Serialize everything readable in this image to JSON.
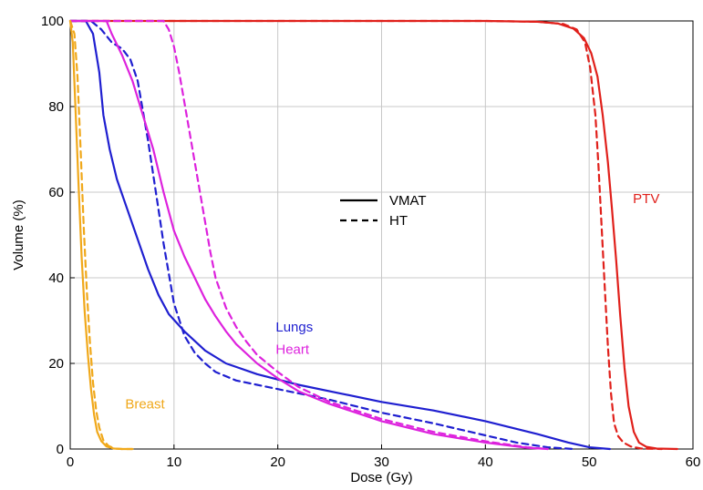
{
  "chart_data": {
    "type": "line",
    "xlabel": "Dose (Gy)",
    "ylabel": "Volume (%)",
    "xlim": [
      0,
      60
    ],
    "ylim": [
      0,
      100
    ],
    "xticks": [
      0,
      10,
      20,
      30,
      40,
      50,
      60
    ],
    "yticks": [
      0,
      20,
      40,
      60,
      80,
      100
    ],
    "grid": true,
    "legend": {
      "placement": "center",
      "entries": [
        {
          "label": "VMAT",
          "style": "solid"
        },
        {
          "label": "HT",
          "style": "dashed"
        }
      ]
    },
    "annotations": [
      {
        "text": "PTV",
        "x": 55.5,
        "y": 57.5,
        "color": "#e0201b"
      },
      {
        "text": "Lungs",
        "x": 19.8,
        "y": 27.5,
        "color": "#1f1fd0"
      },
      {
        "text": "Heart",
        "x": 19.8,
        "y": 22.2,
        "color": "#dd22dd"
      },
      {
        "text": "Breast",
        "x": 5.3,
        "y": 9.5,
        "color": "#f0a81a"
      }
    ],
    "series": [
      {
        "structure": "PTV",
        "technique": "VMAT",
        "color": "#e0201b",
        "style": "solid",
        "x": [
          0,
          40,
          45,
          47,
          48.5,
          49.5,
          50.2,
          50.8,
          51.3,
          51.8,
          52.2,
          52.6,
          53.0,
          53.4,
          53.8,
          54.3,
          54.8,
          55.5,
          56.5,
          58.5
        ],
        "y": [
          100,
          100,
          99.8,
          99.4,
          98.2,
          96.0,
          92.5,
          87.0,
          78.0,
          67.0,
          56.0,
          44.0,
          31.0,
          19.0,
          10.0,
          4.0,
          1.5,
          0.5,
          0.1,
          0
        ]
      },
      {
        "structure": "PTV",
        "technique": "HT",
        "color": "#e0201b",
        "style": "dashed",
        "x": [
          0,
          40,
          45,
          47.5,
          48.8,
          49.6,
          50.1,
          50.6,
          50.9,
          51.2,
          51.5,
          51.8,
          52.1,
          52.4,
          52.8,
          53.3,
          54.0,
          55.0,
          57.0
        ],
        "y": [
          100,
          100,
          99.8,
          99.3,
          98.0,
          95.0,
          89.0,
          78.0,
          66.0,
          52.0,
          38.0,
          24.0,
          13.0,
          6.0,
          3.0,
          1.5,
          0.6,
          0.1,
          0
        ]
      },
      {
        "structure": "Lungs",
        "technique": "VMAT",
        "color": "#1f1fd0",
        "style": "solid",
        "x": [
          0,
          1.5,
          2.2,
          2.8,
          3.2,
          3.8,
          4.5,
          5.5,
          6.5,
          7.5,
          8.5,
          9.5,
          11,
          13,
          15,
          18,
          22,
          26,
          30,
          35,
          40,
          45,
          48,
          50,
          52
        ],
        "y": [
          100,
          100,
          97,
          88,
          78,
          70,
          63,
          56,
          49,
          42,
          36,
          31.5,
          27.5,
          23,
          20,
          17.5,
          15,
          13,
          11,
          9,
          6.5,
          3.5,
          1.5,
          0.4,
          0
        ]
      },
      {
        "structure": "Lungs",
        "technique": "HT",
        "color": "#1f1fd0",
        "style": "dashed",
        "x": [
          0,
          2,
          3,
          4,
          5,
          5.8,
          6.5,
          7,
          7.5,
          8,
          8.5,
          9,
          9.5,
          10,
          11,
          12,
          13,
          14,
          16,
          20,
          25,
          30,
          35,
          40,
          43,
          46,
          48.5
        ],
        "y": [
          100,
          100,
          98,
          95,
          93.5,
          91,
          86,
          79,
          72,
          64,
          56,
          48,
          41,
          34,
          26.5,
          22.5,
          20,
          18,
          16,
          14,
          11.5,
          8.5,
          6,
          3.2,
          1.5,
          0.4,
          0
        ]
      },
      {
        "structure": "Heart",
        "technique": "VMAT",
        "color": "#dd22dd",
        "style": "solid",
        "x": [
          0,
          3.5,
          4,
          5,
          6,
          7,
          8,
          9,
          10,
          11,
          12,
          13,
          14,
          15,
          16,
          18,
          20,
          22,
          25,
          30,
          35,
          40,
          44,
          46
        ],
        "y": [
          100,
          100,
          97,
          92,
          86,
          78,
          70,
          60,
          51,
          45,
          40,
          35,
          31,
          27.5,
          24.5,
          20,
          16.5,
          13.5,
          10.5,
          6.5,
          3.5,
          1.5,
          0.3,
          0
        ]
      },
      {
        "structure": "Heart",
        "technique": "HT",
        "color": "#dd22dd",
        "style": "dashed",
        "x": [
          0,
          9,
          9.5,
          10,
          10.5,
          11,
          11.5,
          12,
          12.5,
          13,
          13.5,
          14,
          15,
          16,
          17,
          18,
          20,
          22,
          25,
          30,
          35,
          40,
          44,
          46
        ],
        "y": [
          100,
          100,
          98,
          94,
          88,
          81,
          74,
          67,
          60,
          53,
          46,
          40,
          33,
          28.5,
          25,
          22,
          18,
          14.5,
          11,
          7,
          4,
          1.8,
          0.4,
          0
        ]
      },
      {
        "structure": "Breast",
        "technique": "VMAT",
        "color": "#f0a81a",
        "style": "solid",
        "x": [
          0,
          0.25,
          0.5,
          0.8,
          1.1,
          1.4,
          1.7,
          2.0,
          2.3,
          2.6,
          3.0,
          3.5,
          4.2,
          5,
          6
        ],
        "y": [
          100,
          95,
          80,
          62,
          45,
          32,
          22,
          14,
          8,
          4,
          1.8,
          0.6,
          0.1,
          0,
          0
        ]
      },
      {
        "structure": "Breast",
        "technique": "HT",
        "color": "#f0a81a",
        "style": "dashed",
        "x": [
          0,
          0.4,
          0.7,
          1.0,
          1.3,
          1.6,
          1.9,
          2.2,
          2.5,
          2.8,
          3.2,
          3.7,
          4.3,
          5,
          6
        ],
        "y": [
          100,
          97,
          87,
          70,
          52,
          37,
          25,
          15.5,
          9,
          5,
          2,
          0.7,
          0.1,
          0,
          0
        ]
      }
    ]
  }
}
